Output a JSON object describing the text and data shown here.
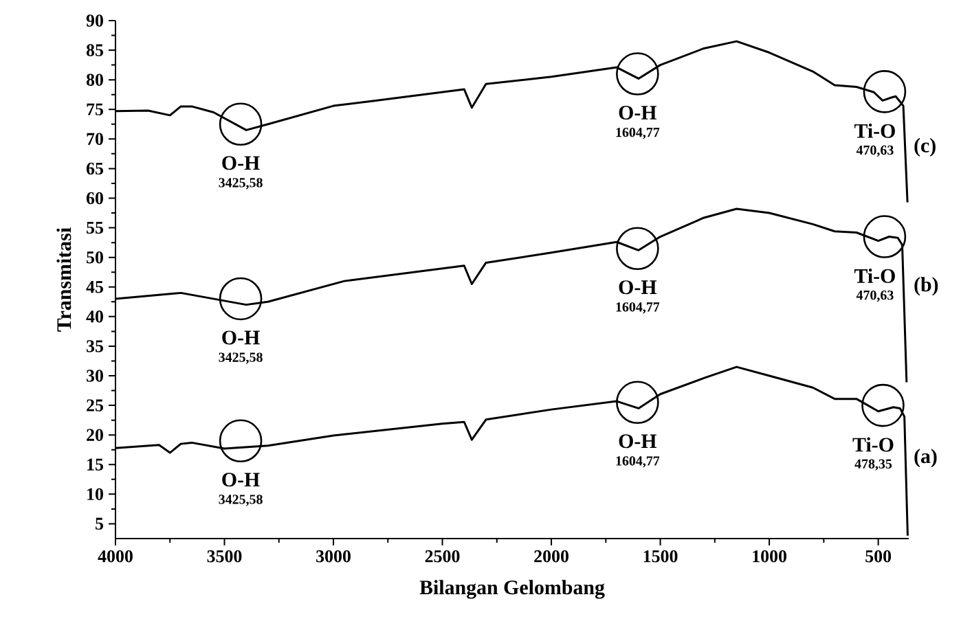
{
  "chart_data": {
    "type": "line",
    "xlabel": "Bilangan Gelombang",
    "ylabel": "Transmitasi",
    "xlim": [
      4000,
      360
    ],
    "ylim": [
      2.5,
      90
    ],
    "xticks": [
      4000,
      3500,
      3000,
      2500,
      2000,
      1500,
      1000,
      500
    ],
    "yticks": [
      5,
      10,
      15,
      20,
      25,
      30,
      35,
      40,
      45,
      50,
      55,
      60,
      65,
      70,
      75,
      80,
      85,
      90
    ],
    "grid": false,
    "legend": false,
    "marker": "none",
    "line_style": "solid",
    "series": [
      {
        "name": "(c)",
        "color": "#000000",
        "x": [
          4000,
          3850,
          3750,
          3700,
          3650,
          3550,
          3400,
          3300,
          3000,
          2800,
          2400,
          2365,
          2300,
          2000,
          1700,
          1600,
          1500,
          1300,
          1150,
          1000,
          800,
          700,
          600,
          520,
          480,
          440,
          420,
          400,
          385,
          366
        ],
        "values": [
          74.7,
          74.8,
          74,
          75.5,
          75.5,
          74.5,
          71.5,
          72.5,
          75.6,
          76.5,
          78.4,
          75.3,
          79.3,
          80.5,
          82.1,
          80.2,
          82.5,
          85.3,
          86.5,
          84.6,
          81.4,
          79.1,
          78.8,
          77.9,
          76.5,
          77,
          77.2,
          76.3,
          75.6,
          59.3
        ]
      },
      {
        "name": "(b)",
        "color": "#000000",
        "x": [
          4000,
          3700,
          3400,
          3300,
          2950,
          2400,
          2365,
          2300,
          2000,
          1700,
          1600,
          1500,
          1300,
          1150,
          1000,
          800,
          700,
          600,
          500,
          450,
          410,
          390,
          370
        ],
        "values": [
          43,
          44,
          42,
          42.5,
          46,
          48.6,
          45.5,
          49.1,
          50.8,
          52.6,
          51.2,
          53.5,
          56.7,
          58.2,
          57.5,
          55.6,
          54.4,
          54.2,
          52.8,
          53.5,
          53.3,
          52.1,
          28.9
        ]
      },
      {
        "name": "(a)",
        "color": "#000000",
        "x": [
          4000,
          3800,
          3750,
          3700,
          3650,
          3500,
          3300,
          3000,
          2500,
          2400,
          2365,
          2300,
          2000,
          1700,
          1600,
          1500,
          1300,
          1150,
          1000,
          800,
          700,
          600,
          500,
          430,
          400,
          380,
          365
        ],
        "values": [
          17.8,
          18.3,
          17,
          18.5,
          18.7,
          17.7,
          18.2,
          19.9,
          21.9,
          22.2,
          19.2,
          22.6,
          24.3,
          25.7,
          24.5,
          26.9,
          29.6,
          31.5,
          30,
          28,
          26.1,
          26.1,
          24,
          24.7,
          24.5,
          23.1,
          3
        ]
      }
    ],
    "annotations": [
      {
        "text": "O-H",
        "x": 3425.58,
        "y": 72.5
      },
      "3425,58",
      {
        "text": "O-H",
        "x": 1604.77,
        "y": 81
      },
      "1604,77",
      {
        "text": "Ti-O",
        "x": 470.63,
        "y": 78
      },
      "470,63",
      {
        "text": "O-H",
        "x": 3425.58,
        "y": 43
      },
      "3425,58",
      {
        "text": "O-H",
        "x": 1604.77,
        "y": 51.5
      },
      "1604,77",
      {
        "text": "Ti-O",
        "x": 470.63,
        "y": 53.5
      },
      "470,63",
      {
        "text": "O-H",
        "x": 3425.58,
        "y": 19
      },
      "3425,58",
      {
        "text": "O-H",
        "x": 1604.77,
        "y": 25.5
      },
      "1604,77",
      {
        "text": "Ti-O",
        "x": 478.35,
        "y": 25
      },
      "478,35"
    ]
  }
}
